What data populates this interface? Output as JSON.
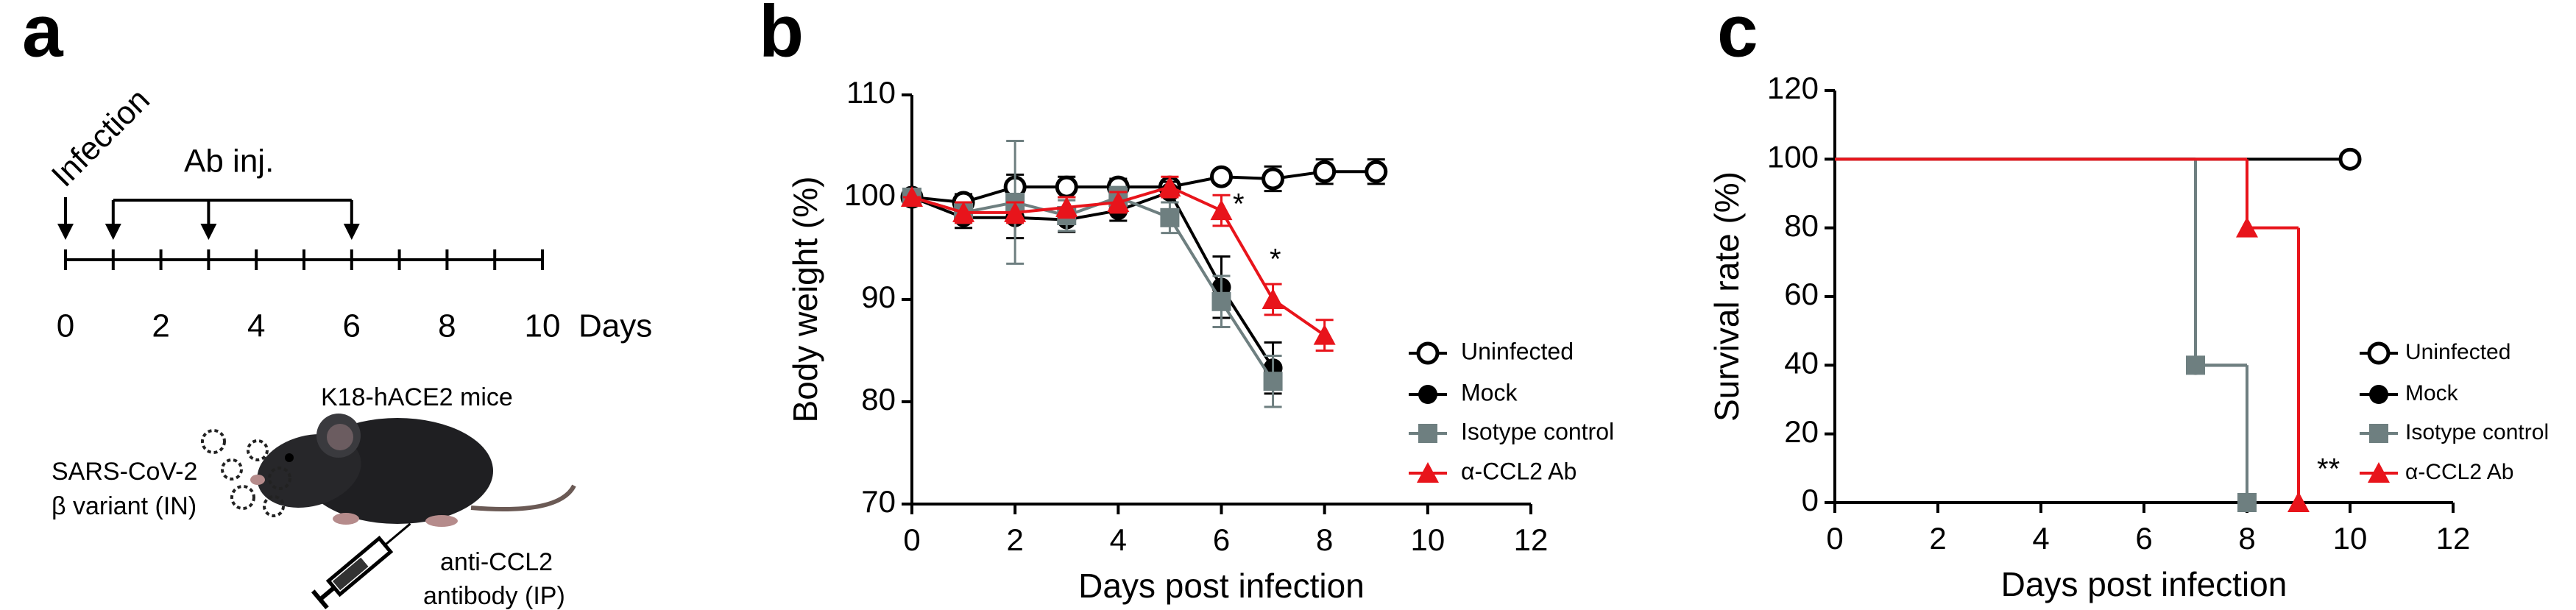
{
  "diagram": {
    "label": "a",
    "infection": "Infection",
    "injection": "Ab inj.",
    "days": "Days",
    "timeline": {
      "ticks": [
        0,
        1,
        2,
        3,
        4,
        5,
        6,
        7,
        8,
        9,
        10
      ],
      "tick_labels": [
        0,
        2,
        4,
        6,
        8,
        10
      ],
      "infection_day": 0,
      "injection_days": [
        1,
        3,
        6
      ]
    },
    "mice": "K18-hACE2 mice",
    "virus": [
      "SARS-CoV-2",
      "β variant (IN)"
    ],
    "antibody": [
      "anti-CCL2",
      "antibody (IP)"
    ]
  },
  "chart_data": [
    {
      "type": "line",
      "label": "b",
      "y_label": "Body weight (%)",
      "x_label": "Days post infection",
      "xlim": [
        0,
        12
      ],
      "xticks": [
        0,
        2,
        4,
        6,
        8,
        10,
        12
      ],
      "ylim": [
        70,
        110
      ],
      "yticks": [
        70,
        80,
        90,
        100,
        110
      ],
      "legend": "right",
      "annotations": [
        "*",
        "*"
      ],
      "series": [
        {
          "name": "Uninfected",
          "color": "#000000",
          "marker": "open-circle",
          "x": [
            0,
            1,
            2,
            3,
            4,
            5,
            6,
            7,
            8,
            9
          ],
          "values": [
            100,
            99.5,
            101,
            101,
            101,
            101,
            102,
            101.8,
            102.5,
            102.5
          ],
          "errors": [
            0,
            0.8,
            1.2,
            1,
            0.8,
            0.6,
            0.6,
            1.2,
            1.2,
            1.2
          ]
        },
        {
          "name": "Mock",
          "color": "#000000",
          "marker": "circle",
          "x": [
            0,
            1,
            2,
            3,
            4,
            5,
            6,
            7
          ],
          "values": [
            100,
            98,
            98,
            97.8,
            98.7,
            100.5,
            91.2,
            83.3
          ],
          "errors": [
            0,
            1,
            2,
            1.2,
            1,
            1,
            3,
            2.5
          ]
        },
        {
          "name": "Isotype control",
          "color": "#6e7f80",
          "marker": "square",
          "x": [
            0,
            1,
            2,
            3,
            4,
            5,
            6,
            7
          ],
          "values": [
            100,
            98.5,
            99.5,
            98.2,
            100,
            98,
            89.8,
            82
          ],
          "errors": [
            0,
            1,
            6,
            1.5,
            1,
            1.5,
            2.5,
            2.5
          ]
        },
        {
          "name": "α-CCL2 Ab",
          "color": "#e8141b",
          "marker": "triangle",
          "x": [
            0,
            1,
            2,
            3,
            4,
            5,
            6,
            7,
            8
          ],
          "values": [
            100,
            98.5,
            98.5,
            99,
            99.5,
            101,
            98.7,
            90,
            86.5
          ],
          "errors": [
            0,
            1,
            1,
            1,
            1,
            1,
            1.5,
            1.5,
            1.5
          ]
        }
      ]
    },
    {
      "type": "survival",
      "label": "c",
      "y_label": "Survival rate (%)",
      "x_label": "Days post infection",
      "xlim": [
        0,
        12
      ],
      "xticks": [
        0,
        2,
        4,
        6,
        8,
        10,
        12
      ],
      "ylim": [
        0,
        120
      ],
      "yticks": [
        0,
        20,
        40,
        60,
        80,
        100,
        120
      ],
      "legend": "right",
      "annotations": [
        "**"
      ],
      "series": [
        {
          "name": "Uninfected",
          "color": "#000000",
          "marker": "open-circle",
          "x": [
            0,
            10
          ],
          "values": [
            100,
            100
          ]
        },
        {
          "name": "Mock",
          "color": "#000000",
          "marker": "circle",
          "x": [
            0,
            7,
            8
          ],
          "values": [
            100,
            40,
            0
          ]
        },
        {
          "name": "Isotype control",
          "color": "#6e7f80",
          "marker": "square",
          "x": [
            0,
            7,
            8
          ],
          "values": [
            100,
            40,
            0
          ]
        },
        {
          "name": "α-CCL2 Ab",
          "color": "#e8141b",
          "marker": "triangle",
          "x": [
            0,
            8,
            9
          ],
          "values": [
            100,
            80,
            0
          ]
        }
      ]
    }
  ]
}
